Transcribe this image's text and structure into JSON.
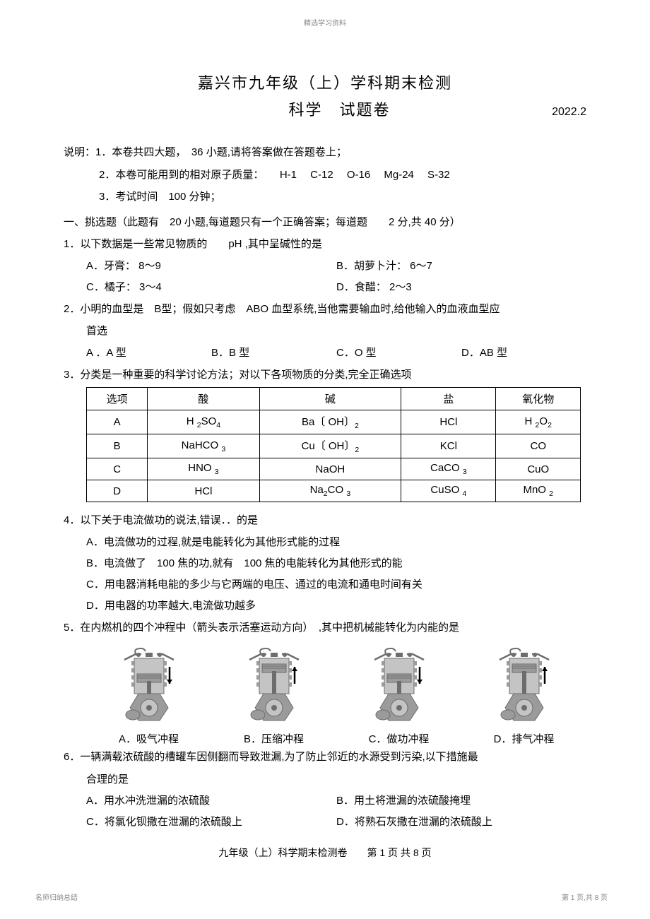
{
  "watermark_top": "精选学习资料",
  "title_line1": "嘉兴市九年级（上）学科期末检测",
  "title_line2": "科学　试题卷",
  "exam_date": "2022.2",
  "instructions": {
    "line1": "说明：1．本卷共四大题，　36 小题,请将答案做在答题卷上；",
    "line2": "2．本卷可能用到的相对原子质量：　　H-1　 C-12　 O-16　 Mg-24　 S-32",
    "line3": "3．考试时间　100 分钟；"
  },
  "section_a": "一、挑选题（此题有　20 小题,每道题只有一个正确答案；每道题　　2 分,共 40 分）",
  "q1": {
    "stem": "1．以下数据是一些常见物质的　　pH ,其中呈碱性的是",
    "a": "A．牙膏： 8～9",
    "b": "B．胡萝卜汁： 6～7",
    "c": "C．橘子： 3～4",
    "d": "D．食醋： 2～3"
  },
  "q2": {
    "stem": "2．小明的血型是　B型；假如只考虑　ABO 血型系统,当他需要输血时,给他输入的血液血型应",
    "stem2": "首选",
    "a": "A ．A 型",
    "b": "B．B 型",
    "c": "C．O 型",
    "d": "D．AB 型"
  },
  "q3": {
    "stem": "3．分类是一种重要的科学讨论方法；对以下各项物质的分类,完全正确选项",
    "table": {
      "headers": [
        "选项",
        "酸",
        "碱",
        "盐",
        "氧化物"
      ],
      "rows": [
        [
          "A",
          "H 2SO4",
          "Ba〔 OH〕2",
          "HCl",
          "H 2O2"
        ],
        [
          "B",
          "NaHCO 3",
          "Cu〔 OH〕2",
          "KCl",
          "CO"
        ],
        [
          "C",
          "HNO 3",
          "NaOH",
          "CaCO 3",
          "CuO"
        ],
        [
          "D",
          "HCl",
          "Na2CO 3",
          "CuSO 4",
          "MnO 2"
        ]
      ]
    }
  },
  "q4": {
    "stem": "4．以下关于电流做功的说法,错误．．的是",
    "a": "A．电流做功的过程,就是电能转化为其他形式能的过程",
    "b": "B．电流做了　100 焦的功,就有　100 焦的电能转化为其他形式的能",
    "c": "C．用电器消耗电能的多少与它两端的电压、通过的电流和通电时间有关",
    "d": "D．用电器的功率越大,电流做功越多"
  },
  "q5": {
    "stem": "5．在内燃机的四个冲程中（箭头表示活塞运动方向）　,其中把机械能转化为内能的是",
    "a": "A．吸气冲程",
    "b": "B．压缩冲程",
    "c": "C．做功冲程",
    "d": "D．排气冲程"
  },
  "q6": {
    "stem": "6．一辆满载浓硫酸的槽罐车因侧翻而导致泄漏,为了防止邻近的水源受到污染,以下措施最",
    "stem2": "合理的是",
    "a": "A．用水冲洗泄漏的浓硫酸",
    "b": "B．用土将泄漏的浓硫酸掩埋",
    "c": "C．将氯化钡撒在泄漏的浓硫酸上",
    "d": "D．将熟石灰撒在泄漏的浓硫酸上"
  },
  "footer_page": "九年级（上）科学期末检测卷　　第 1 页 共 8 页",
  "bottom_left": "名师归纳总结",
  "bottom_right": "第 1 页,共 8 页",
  "engine_svg_colors": {
    "body": "#9b9b9b",
    "dark": "#6d6d6d",
    "light": "#c4c4c4",
    "arrow": "#000000"
  },
  "engine_arrow_directions": [
    "down",
    "up",
    "down",
    "up"
  ]
}
